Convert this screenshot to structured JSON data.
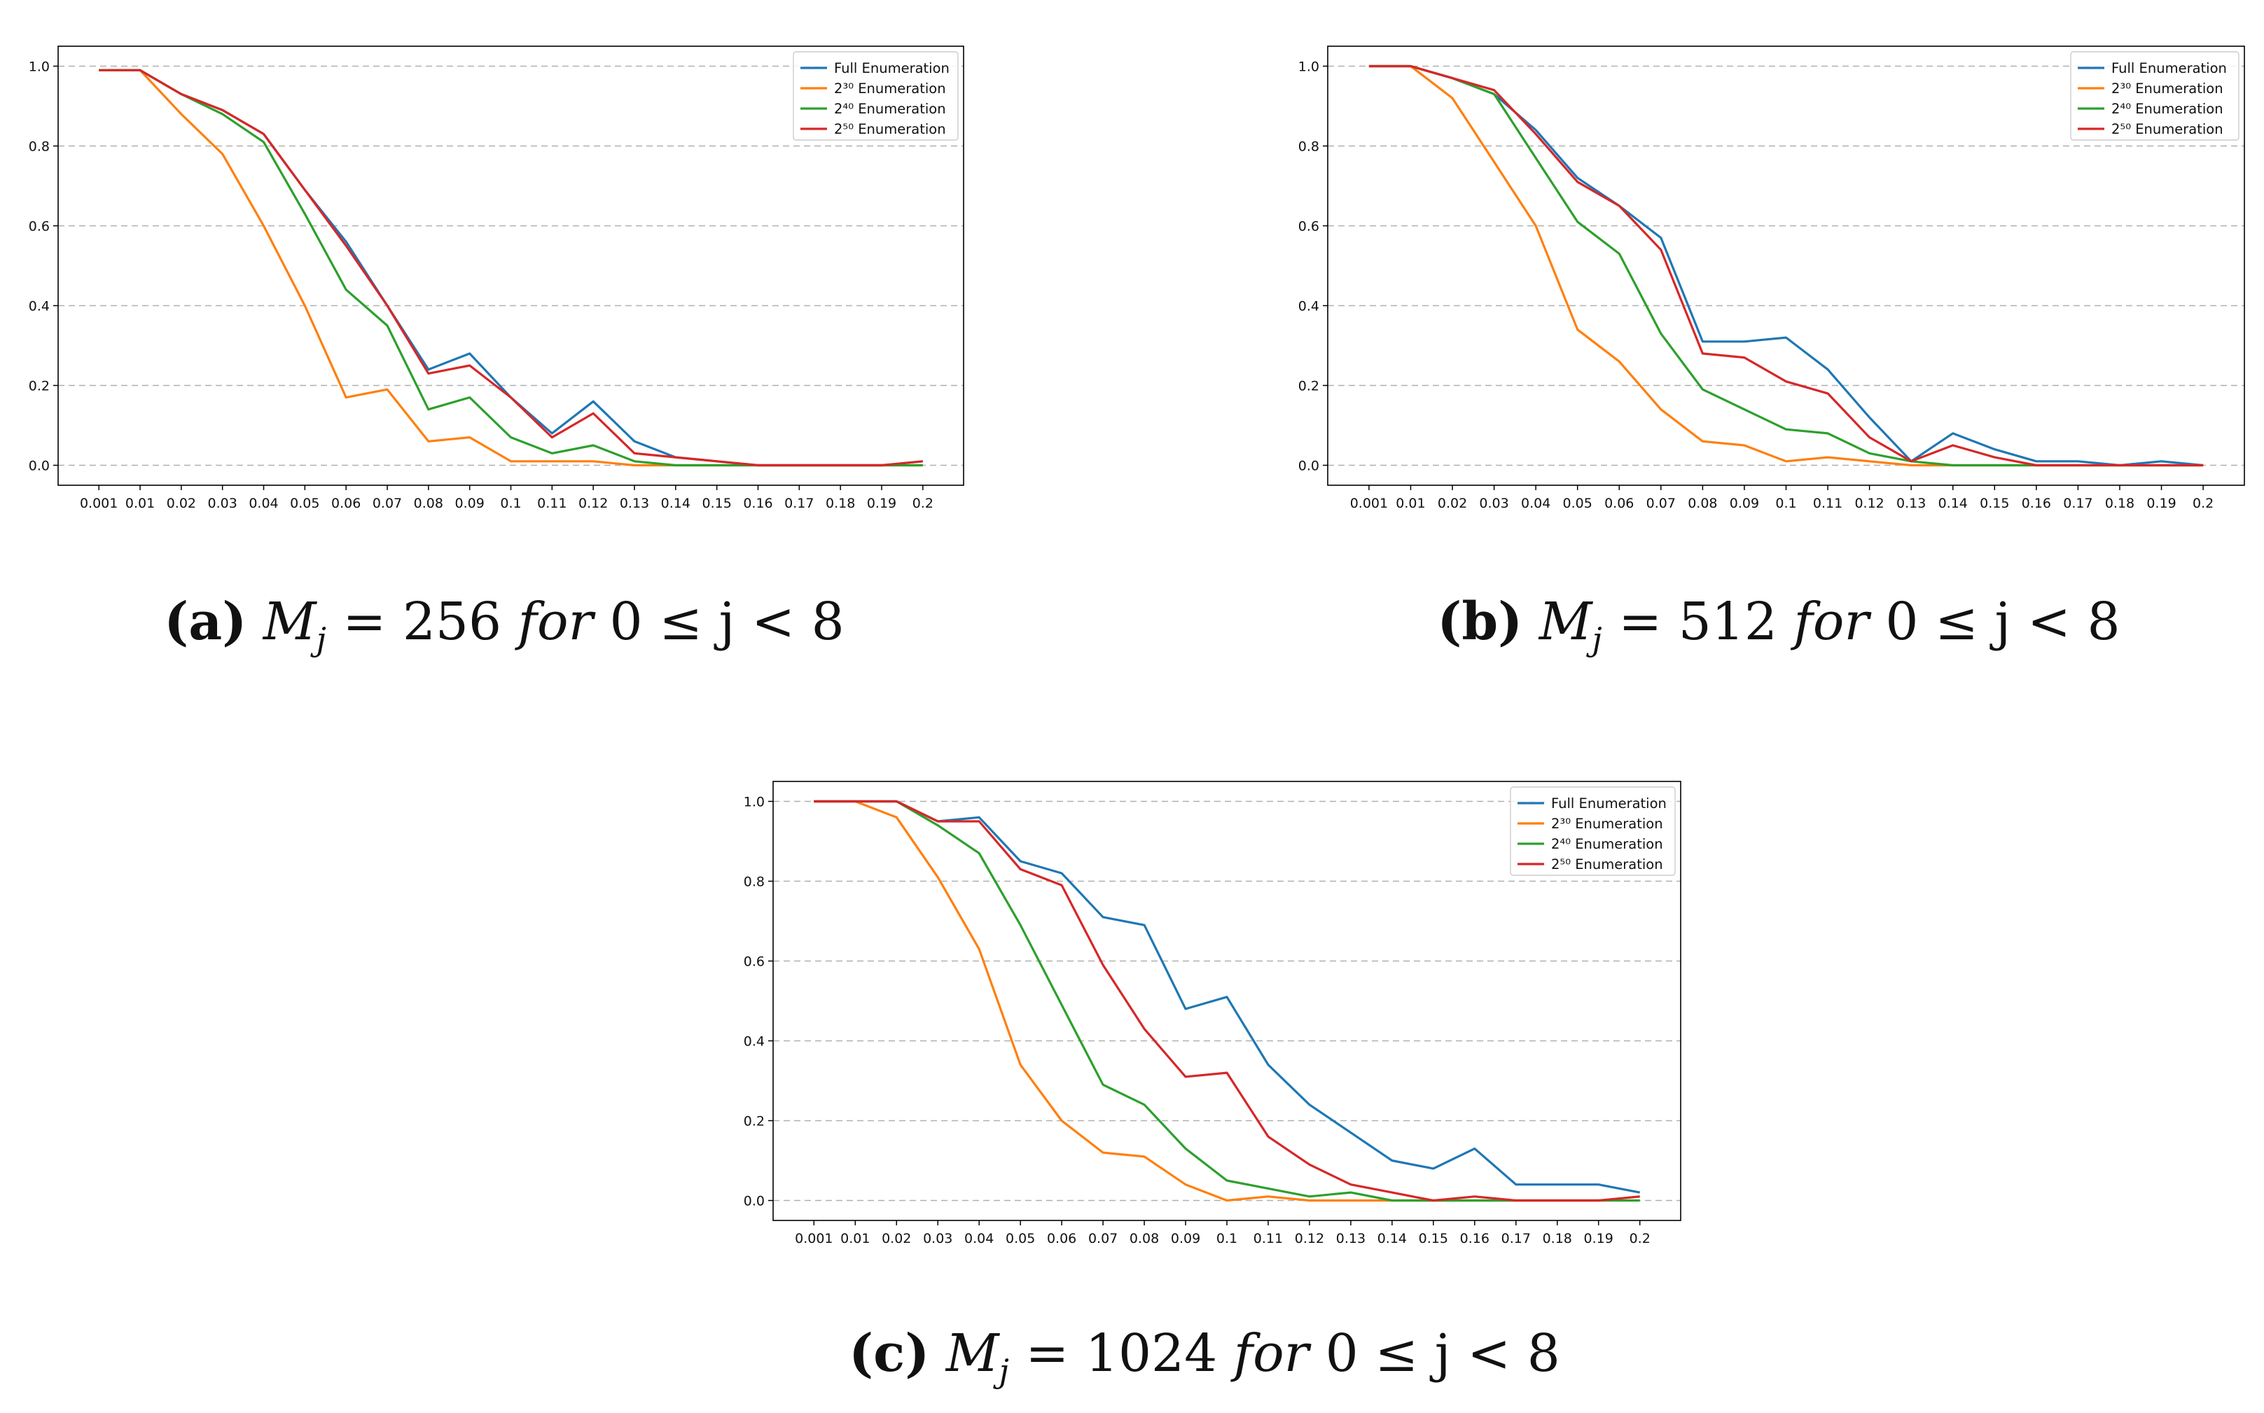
{
  "chart_data": [
    {
      "type": "line",
      "categories": [
        "0.001",
        "0.01",
        "0.02",
        "0.03",
        "0.04",
        "0.05",
        "0.06",
        "0.07",
        "0.08",
        "0.09",
        "0.1",
        "0.11",
        "0.12",
        "0.13",
        "0.14",
        "0.15",
        "0.16",
        "0.17",
        "0.18",
        "0.19",
        "0.2"
      ],
      "y_ticks": [
        "0.0",
        "0.2",
        "0.4",
        "0.6",
        "0.8",
        "1.0"
      ],
      "ylim": [
        -0.05,
        1.05
      ],
      "grid": "horizontal-dashed",
      "legend_position": "top-right",
      "caption": {
        "letter": "(a)",
        "var": "M",
        "sub": "j",
        "eq": "= 256",
        "for": "for",
        "cond": "0 ≤ j < 8"
      },
      "series": [
        {
          "name": "Full Enumeration",
          "color": "#1f77b4",
          "values": [
            0.99,
            0.99,
            0.93,
            0.89,
            0.83,
            0.69,
            0.56,
            0.4,
            0.24,
            0.28,
            0.17,
            0.08,
            0.16,
            0.06,
            0.02,
            0.01,
            0.0,
            0.0,
            0.0,
            0.0,
            0.01
          ]
        },
        {
          "name": "2³⁰ Enumeration",
          "color": "#ff7f0e",
          "values": [
            0.99,
            0.99,
            0.88,
            0.78,
            0.6,
            0.4,
            0.17,
            0.19,
            0.06,
            0.07,
            0.01,
            0.01,
            0.01,
            0.0,
            0.0,
            0.0,
            0.0,
            0.0,
            0.0,
            0.0,
            0.0
          ]
        },
        {
          "name": "2⁴⁰ Enumeration",
          "color": "#2ca02c",
          "values": [
            0.99,
            0.99,
            0.93,
            0.88,
            0.81,
            0.63,
            0.44,
            0.35,
            0.14,
            0.17,
            0.07,
            0.03,
            0.05,
            0.01,
            0.0,
            0.0,
            0.0,
            0.0,
            0.0,
            0.0,
            0.0
          ]
        },
        {
          "name": "2⁵⁰ Enumeration",
          "color": "#d62728",
          "values": [
            0.99,
            0.99,
            0.93,
            0.89,
            0.83,
            0.69,
            0.55,
            0.4,
            0.23,
            0.25,
            0.17,
            0.07,
            0.13,
            0.03,
            0.02,
            0.01,
            0.0,
            0.0,
            0.0,
            0.0,
            0.01
          ]
        }
      ]
    },
    {
      "type": "line",
      "categories": [
        "0.001",
        "0.01",
        "0.02",
        "0.03",
        "0.04",
        "0.05",
        "0.06",
        "0.07",
        "0.08",
        "0.09",
        "0.1",
        "0.11",
        "0.12",
        "0.13",
        "0.14",
        "0.15",
        "0.16",
        "0.17",
        "0.18",
        "0.19",
        "0.2"
      ],
      "y_ticks": [
        "0.0",
        "0.2",
        "0.4",
        "0.6",
        "0.8",
        "1.0"
      ],
      "ylim": [
        -0.05,
        1.05
      ],
      "grid": "horizontal-dashed",
      "legend_position": "top-right",
      "caption": {
        "letter": "(b)",
        "var": "M",
        "sub": "j",
        "eq": "= 512",
        "for": "for",
        "cond": "0 ≤ j < 8"
      },
      "series": [
        {
          "name": "Full Enumeration",
          "color": "#1f77b4",
          "values": [
            1.0,
            1.0,
            0.97,
            0.93,
            0.84,
            0.72,
            0.65,
            0.57,
            0.31,
            0.31,
            0.32,
            0.24,
            0.12,
            0.01,
            0.08,
            0.04,
            0.01,
            0.01,
            0.0,
            0.01,
            0.0
          ]
        },
        {
          "name": "2³⁰ Enumeration",
          "color": "#ff7f0e",
          "values": [
            1.0,
            1.0,
            0.92,
            0.76,
            0.6,
            0.34,
            0.26,
            0.14,
            0.06,
            0.05,
            0.01,
            0.02,
            0.01,
            0.0,
            0.0,
            0.0,
            0.0,
            0.0,
            0.0,
            0.0,
            0.0
          ]
        },
        {
          "name": "2⁴⁰ Enumeration",
          "color": "#2ca02c",
          "values": [
            1.0,
            1.0,
            0.97,
            0.93,
            0.77,
            0.61,
            0.53,
            0.33,
            0.19,
            0.14,
            0.09,
            0.08,
            0.03,
            0.01,
            0.0,
            0.0,
            0.0,
            0.0,
            0.0,
            0.0,
            0.0
          ]
        },
        {
          "name": "2⁵⁰ Enumeration",
          "color": "#d62728",
          "values": [
            1.0,
            1.0,
            0.97,
            0.94,
            0.83,
            0.71,
            0.65,
            0.54,
            0.28,
            0.27,
            0.21,
            0.18,
            0.07,
            0.01,
            0.05,
            0.02,
            0.0,
            0.0,
            0.0,
            0.0,
            0.0
          ]
        }
      ]
    },
    {
      "type": "line",
      "categories": [
        "0.001",
        "0.01",
        "0.02",
        "0.03",
        "0.04",
        "0.05",
        "0.06",
        "0.07",
        "0.08",
        "0.09",
        "0.1",
        "0.11",
        "0.12",
        "0.13",
        "0.14",
        "0.15",
        "0.16",
        "0.17",
        "0.18",
        "0.19",
        "0.2"
      ],
      "y_ticks": [
        "0.0",
        "0.2",
        "0.4",
        "0.6",
        "0.8",
        "1.0"
      ],
      "ylim": [
        -0.05,
        1.05
      ],
      "grid": "horizontal-dashed",
      "legend_position": "top-right",
      "caption": {
        "letter": "(c)",
        "var": "M",
        "sub": "j",
        "eq": "= 1024",
        "for": "for",
        "cond": "0 ≤ j < 8"
      },
      "series": [
        {
          "name": "Full Enumeration",
          "color": "#1f77b4",
          "values": [
            1.0,
            1.0,
            1.0,
            0.95,
            0.96,
            0.85,
            0.82,
            0.71,
            0.69,
            0.48,
            0.51,
            0.34,
            0.24,
            0.17,
            0.1,
            0.08,
            0.13,
            0.04,
            0.04,
            0.04,
            0.02
          ]
        },
        {
          "name": "2³⁰ Enumeration",
          "color": "#ff7f0e",
          "values": [
            1.0,
            1.0,
            0.96,
            0.81,
            0.63,
            0.34,
            0.2,
            0.12,
            0.11,
            0.04,
            0.0,
            0.01,
            0.0,
            0.0,
            0.0,
            0.0,
            0.0,
            0.0,
            0.0,
            0.0,
            0.01
          ]
        },
        {
          "name": "2⁴⁰ Enumeration",
          "color": "#2ca02c",
          "values": [
            1.0,
            1.0,
            1.0,
            0.94,
            0.87,
            0.69,
            0.49,
            0.29,
            0.24,
            0.13,
            0.05,
            0.03,
            0.01,
            0.02,
            0.0,
            0.0,
            0.0,
            0.0,
            0.0,
            0.0,
            0.0
          ]
        },
        {
          "name": "2⁵⁰ Enumeration",
          "color": "#d62728",
          "values": [
            1.0,
            1.0,
            1.0,
            0.95,
            0.95,
            0.83,
            0.79,
            0.59,
            0.43,
            0.31,
            0.32,
            0.16,
            0.09,
            0.04,
            0.02,
            0.0,
            0.01,
            0.0,
            0.0,
            0.0,
            0.01
          ]
        }
      ]
    }
  ]
}
